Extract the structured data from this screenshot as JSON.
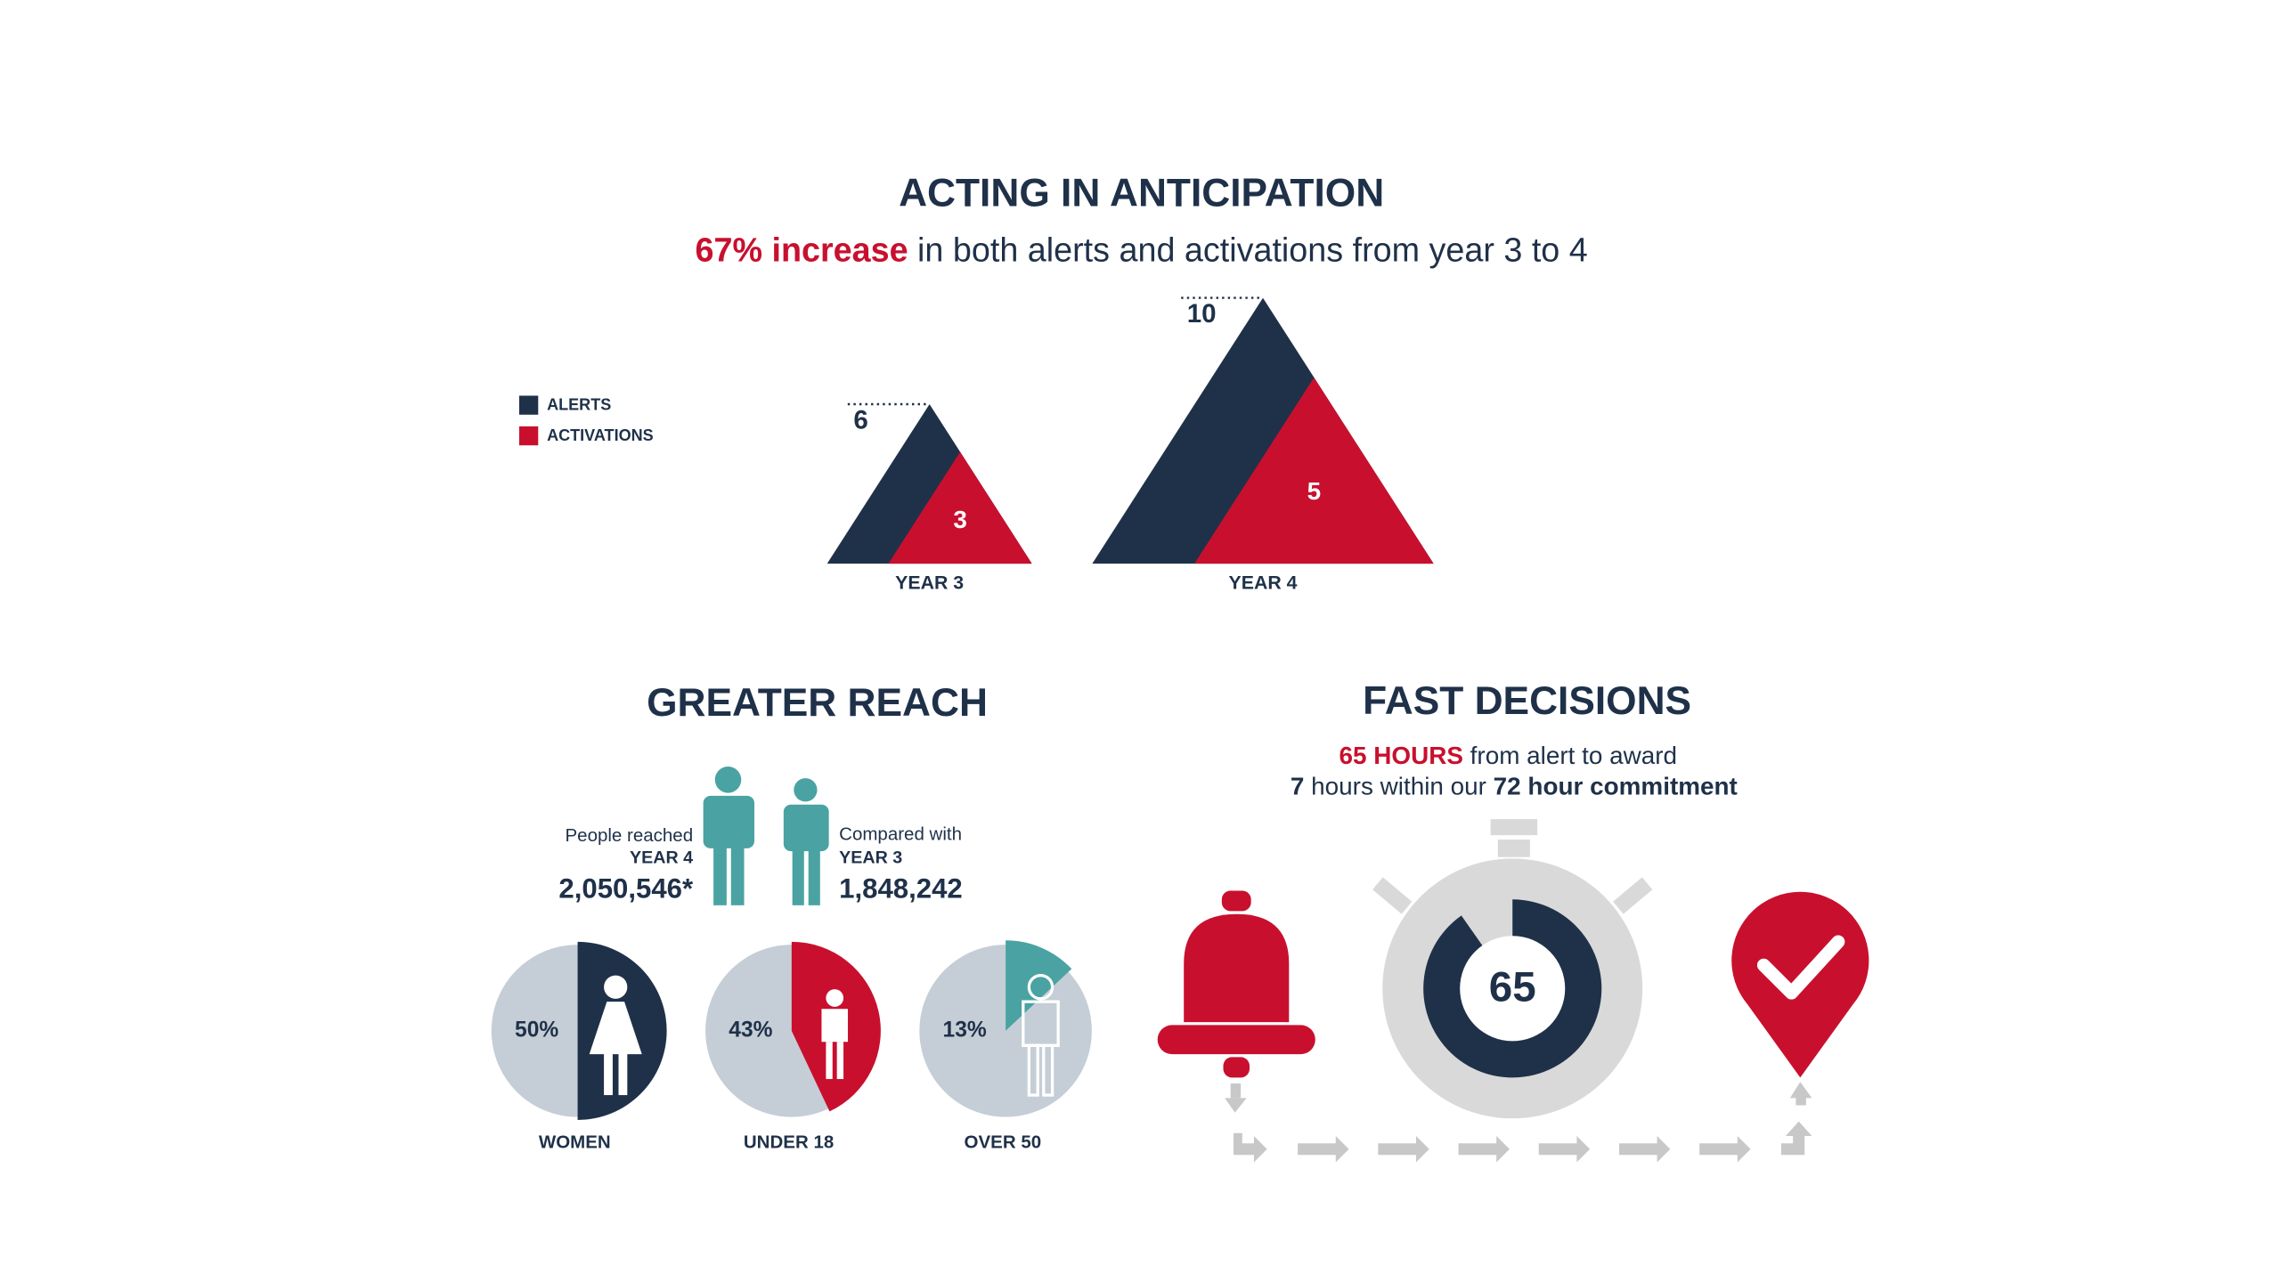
{
  "chart_data": [
    {
      "type": "triangle",
      "title": "ACTING IN ANTICIPATION",
      "subtitle": [
        "67% increase",
        "in both alerts and activations from year 3 to 4"
      ],
      "categories": [
        "YEAR 3",
        "YEAR 4"
      ],
      "series": [
        {
          "name": "ALERTS",
          "color": "#1f3149",
          "values": [
            6,
            10
          ]
        },
        {
          "name": "ACTIVATIONS",
          "color": "#c8102e",
          "values": [
            3,
            5
          ]
        }
      ]
    },
    {
      "type": "pie",
      "title": "GREATER REACH",
      "reach": [
        {
          "label": "People reached",
          "period": "YEAR 4",
          "count": "2,050,546*"
        },
        {
          "label": "Compared with",
          "period": "YEAR 3",
          "count": "1,848,242"
        }
      ],
      "categories": [
        "WOMEN",
        "UNDER 18",
        "OVER 50"
      ],
      "values": [
        50,
        43,
        13
      ],
      "value_labels": [
        "50%",
        "43%",
        "13%"
      ],
      "colors": [
        "#1f3149",
        "#c8102e",
        "#4aa3a2"
      ],
      "base_color": "#c5ced6"
    },
    {
      "type": "donut",
      "title": "FAST DECISIONS",
      "subtitle": [
        [
          "65 HOURS",
          "from alert to award"
        ],
        [
          "7",
          "hours within our",
          "72 hour commitment"
        ]
      ],
      "value": 65,
      "ylim": [
        0,
        72
      ],
      "color": "#1f3149"
    }
  ]
}
